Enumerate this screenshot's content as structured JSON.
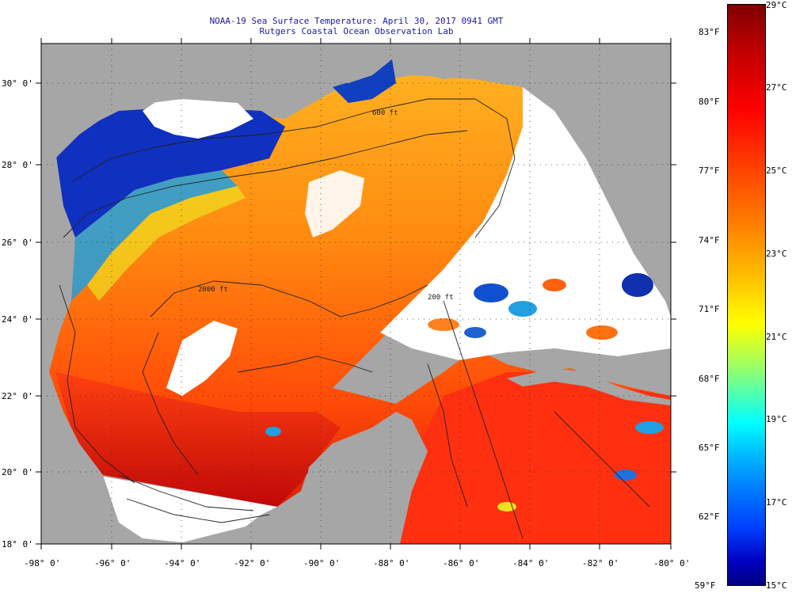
{
  "header": {
    "title": "NOAA-19 Sea Surface Temperature:  April 30, 2017 0941 GMT",
    "subtitle": "Rutgers Coastal Ocean Observation Lab"
  },
  "map": {
    "region": "Gulf of Mexico",
    "lon_range": [
      -98,
      -80
    ],
    "lat_range": [
      18,
      31
    ],
    "lat_labels": [
      "30° 0'",
      "28° 0'",
      "26° 0'",
      "24° 0'",
      "22° 0'",
      "20° 0'",
      "18° 0'"
    ],
    "lon_labels": [
      "-98° 0'",
      "-96° 0'",
      "-94° 0'",
      "-92° 0'",
      "-90° 0'",
      "-88° 0'",
      "-86° 0'",
      "-84° 0'",
      "-82° 0'",
      "-80° 0'"
    ],
    "contours": {
      "c200": "200 ft",
      "c600": "600 ft",
      "c2000": "2000 ft"
    },
    "colors": {
      "land": "#a6a6a6",
      "cloud": "#ffffff"
    }
  },
  "colorbar": {
    "celsius_labels": [
      "29°C",
      "27°C",
      "25°C",
      "23°C",
      "21°C",
      "19°C",
      "17°C",
      "15°C"
    ],
    "fahrenheit_labels": [
      "83°F",
      "80°F",
      "77°F",
      "74°F",
      "71°F",
      "68°F",
      "65°F",
      "62°F",
      "59°F"
    ],
    "range_c": [
      15,
      29
    ],
    "range_f": [
      59,
      84.2
    ],
    "colors": [
      "#000080",
      "#0000ff",
      "#0080ff",
      "#00ffff",
      "#80ff80",
      "#ffff00",
      "#ff8000",
      "#ff0000",
      "#800000"
    ]
  }
}
